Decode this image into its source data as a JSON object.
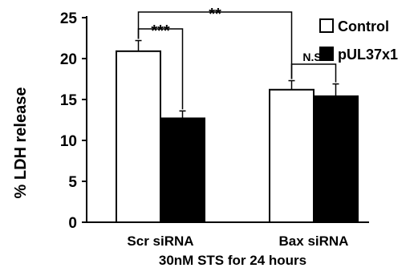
{
  "chart_data": {
    "type": "bar",
    "categories": [
      "Scr siRNA",
      "Bax siRNA"
    ],
    "xlabel": "30nM STS for 24 hours",
    "ylabel": "% LDH release",
    "ylim": [
      0,
      25
    ],
    "yticks": [
      0,
      5,
      10,
      15,
      20,
      25
    ],
    "series": [
      {
        "name": "Control",
        "fill": "#ffffff",
        "values": [
          20.9,
          16.2
        ],
        "errors": [
          1.3,
          1.1
        ]
      },
      {
        "name": "pUL37x1",
        "fill": "#000000",
        "values": [
          12.7,
          15.4
        ],
        "errors": [
          0.9,
          1.5
        ]
      }
    ],
    "significance": [
      {
        "label": "***",
        "from": [
          0,
          0
        ],
        "to": [
          0,
          1
        ]
      },
      {
        "label": "**",
        "from": [
          0,
          0
        ],
        "to": [
          1,
          0
        ]
      },
      {
        "label": "N.S.",
        "from": [
          1,
          0
        ],
        "to": [
          1,
          1
        ]
      }
    ],
    "legend": "top-right",
    "grid": false
  }
}
